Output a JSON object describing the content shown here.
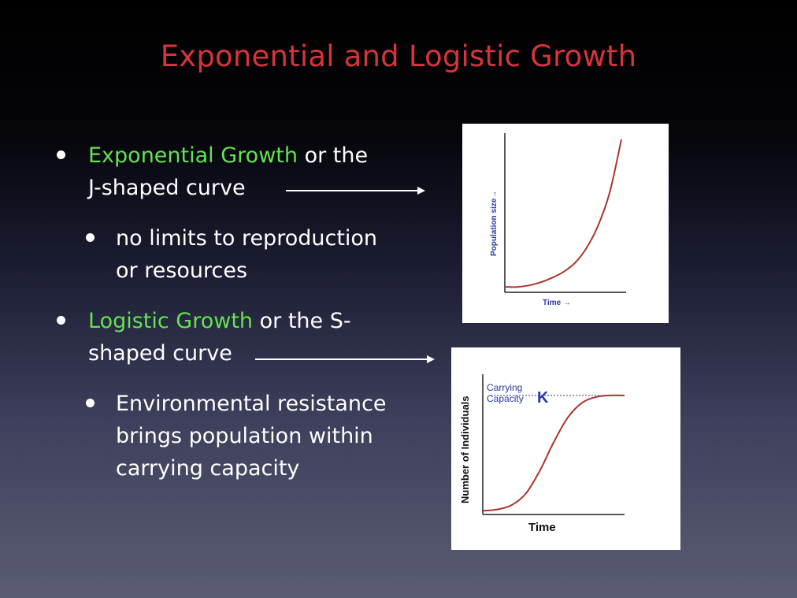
{
  "slide": {
    "title": "Exponential and Logistic Growth"
  },
  "bullets": {
    "exponential": {
      "highlight": "Exponential Growth",
      "rest_line1": " or the",
      "line2": "J-shaped curve",
      "sub_line1": "no limits to reproduction",
      "sub_line2": "or resources"
    },
    "logistic": {
      "highlight": "Logistic Growth",
      "rest_line1": " or the S-",
      "line2": "shaped curve",
      "sub_line1": "Environmental resistance",
      "sub_line2": "brings population within",
      "sub_line3": "carrying capacity"
    }
  },
  "colors": {
    "title": "#d6343a",
    "highlight": "#63e34f",
    "curve": "#a8362c",
    "axis_label_blue": "#2a3aa8",
    "capacity_line": "#6c7ad0"
  },
  "chart_data": [
    {
      "type": "line",
      "title": "",
      "xlabel": "Time",
      "ylabel": "Population size",
      "xlabel_suffix": "→",
      "ylabel_suffix": "→",
      "ticks": false,
      "grid": false,
      "series": [
        {
          "x": [
            0,
            0.1,
            0.2,
            0.3,
            0.4,
            0.5,
            0.6,
            0.7,
            0.8,
            0.9,
            1.0
          ],
          "y": [
            0.02,
            0.02,
            0.03,
            0.05,
            0.08,
            0.12,
            0.18,
            0.28,
            0.43,
            0.65,
            1.0
          ]
        }
      ],
      "xlim": [
        0,
        1
      ],
      "ylim": [
        0,
        1
      ]
    },
    {
      "type": "line",
      "title": "",
      "xlabel": "Time",
      "ylabel": "Number of Individuals",
      "ticks": false,
      "grid": false,
      "annotation": {
        "label_line1": "Carrying",
        "label_line2": "Capacity",
        "symbol": "K",
        "value": 0.82
      },
      "series": [
        {
          "x": [
            0,
            0.1,
            0.2,
            0.3,
            0.4,
            0.5,
            0.6,
            0.7,
            0.8,
            0.9,
            1.0
          ],
          "y": [
            0.02,
            0.03,
            0.06,
            0.14,
            0.3,
            0.5,
            0.67,
            0.77,
            0.81,
            0.82,
            0.82
          ]
        }
      ],
      "xlim": [
        0,
        1
      ],
      "ylim": [
        0,
        1
      ]
    }
  ]
}
